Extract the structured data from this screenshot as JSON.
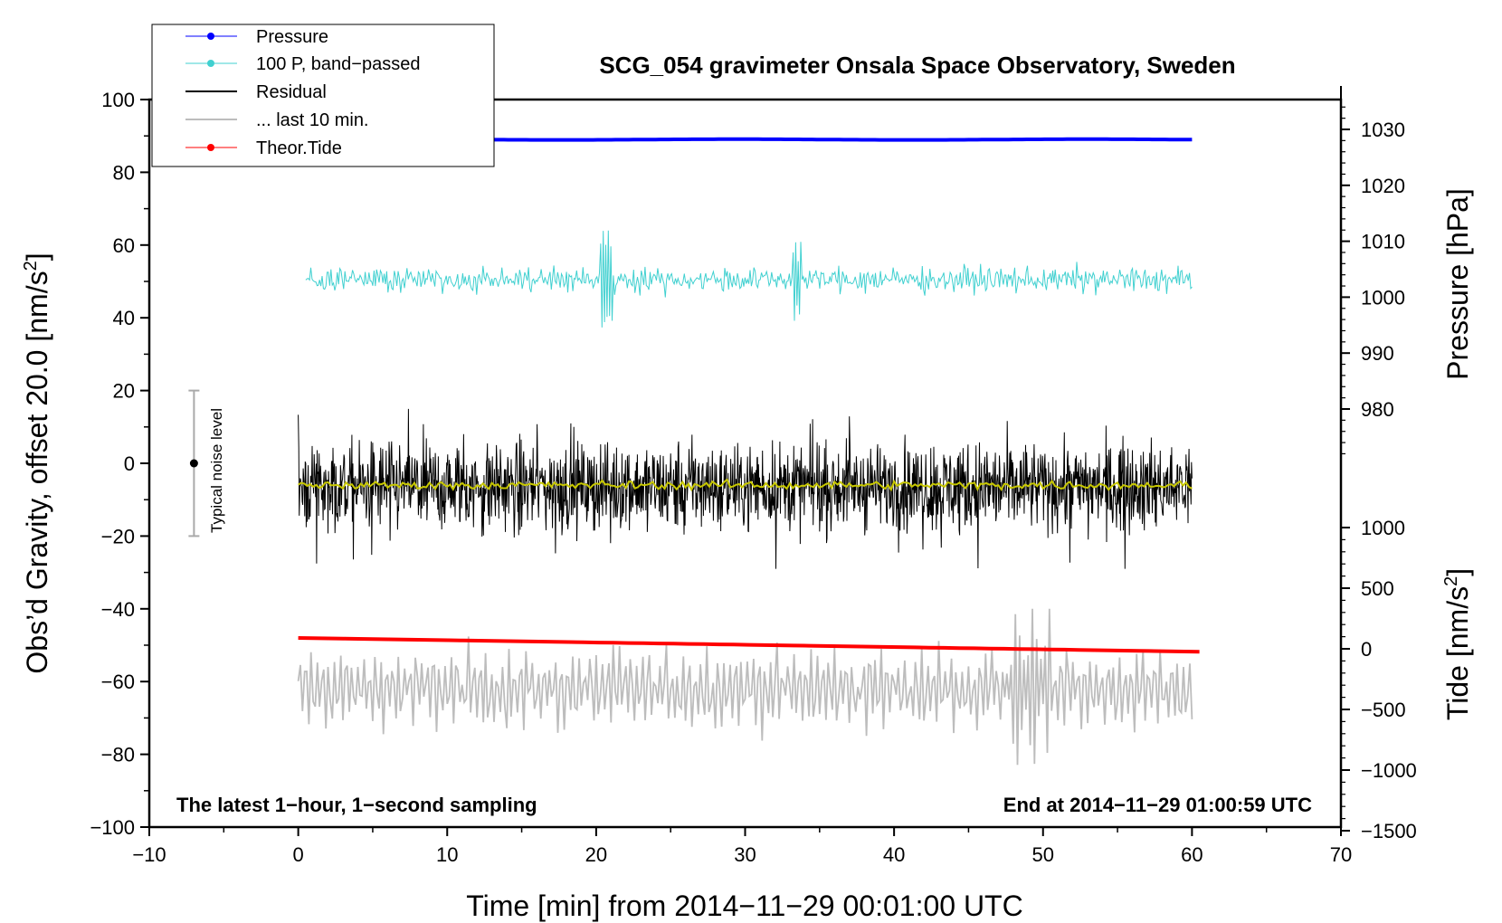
{
  "chart_data": {
    "type": "line",
    "title": "SCG_054 gravimeter Onsala Space Observatory, Sweden",
    "xlabel": "Time [min] from 2014−11−29 00:01:00 UTC",
    "ylabel_left": "Obs’d Gravity, offset 20.0 [nm/s",
    "ylabel_left_sup": "2",
    "ylabel_left_close": "]",
    "ylabel_pressure": "Pressure [hPa]",
    "ylabel_tide": "Tide [nm/s",
    "ylabel_tide_sup": "2",
    "ylabel_tide_close": "]",
    "xlim": [
      -10,
      70
    ],
    "ylim": [
      -100,
      100
    ],
    "x_ticks": [
      "−10",
      "0",
      "10",
      "20",
      "30",
      "40",
      "50",
      "60",
      "70"
    ],
    "x_tick_values": [
      -10,
      0,
      10,
      20,
      30,
      40,
      50,
      60,
      70
    ],
    "y_ticks": [
      "−100",
      "−80",
      "−60",
      "−40",
      "−20",
      "0",
      "20",
      "40",
      "60",
      "80",
      "100"
    ],
    "y_tick_values": [
      -100,
      -80,
      -60,
      -40,
      -20,
      0,
      20,
      40,
      60,
      80,
      100
    ],
    "pressure_ticks": [
      "980",
      "990",
      "1000",
      "1010",
      "1020",
      "1030"
    ],
    "pressure_tick_values": [
      980,
      990,
      1000,
      1010,
      1020,
      1030
    ],
    "tide_ticks": [
      "−1500",
      "−1000",
      "−500",
      "0",
      "500",
      "1000"
    ],
    "tide_tick_values": [
      -1500,
      -1000,
      -500,
      0,
      500,
      1000
    ],
    "grid": false,
    "legend_position": "top-left",
    "annotation_left": "The latest 1−hour, 1−second sampling",
    "annotation_right": "End at 2014−11−29 01:00:59 UTC",
    "noise_label": "Typical noise level",
    "noise_bar": {
      "x": -7,
      "center": 0,
      "half_range": 20
    },
    "series": [
      {
        "name": "Pressure",
        "color": "#0000ff",
        "marker": true,
        "x_range": [
          0,
          60
        ],
        "level": 89.0,
        "amplitude": 0.3
      },
      {
        "name": "100 P, band−passed",
        "color": "#40d0d0",
        "marker": true,
        "x_range": [
          0.5,
          60
        ],
        "level": 50.5,
        "amplitude": 3.0
      },
      {
        "name": "Residual",
        "color": "#000000",
        "marker": false,
        "x_range": [
          0,
          60
        ],
        "level": -6.5,
        "amplitude": 9.5
      },
      {
        "name": "... last 10 min.",
        "color": "#bdbdbd",
        "marker": false,
        "x_range": [
          0,
          60
        ],
        "level": -62,
        "amplitude": 10
      },
      {
        "name": "Theor.Tide",
        "color": "#ff0000",
        "marker": true,
        "x_range": [
          0,
          60.5
        ],
        "start": -48.0,
        "end": -51.8
      }
    ],
    "smoothed_residual": {
      "color": "#c8c800",
      "level": -6.0,
      "amplitude": 0.8
    }
  }
}
